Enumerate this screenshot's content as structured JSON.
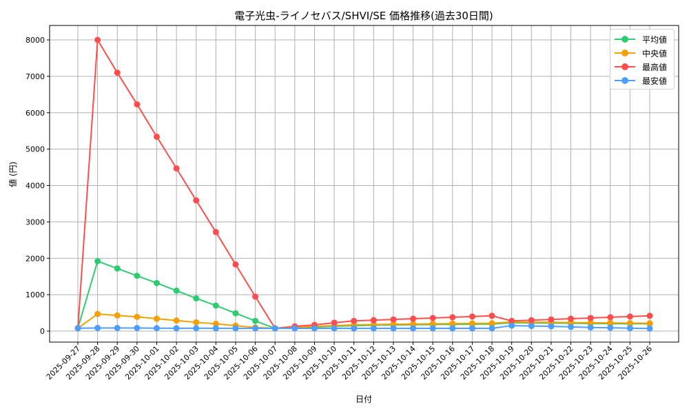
{
  "chart_data": {
    "type": "line",
    "title": "電子光虫-ライノセバス/SHVI/SE 価格推移(過去30日間)",
    "xlabel": "日付",
    "ylabel": "値 (円)",
    "ylim": [
      -300,
      8400
    ],
    "yticks": [
      0,
      1000,
      2000,
      3000,
      4000,
      5000,
      6000,
      7000,
      8000
    ],
    "grid": true,
    "legend_position": "upper right",
    "x": [
      "2025-09-27",
      "2025-09-28",
      "2025-09-29",
      "2025-09-30",
      "2025-10-01",
      "2025-10-02",
      "2025-10-03",
      "2025-10-04",
      "2025-10-05",
      "2025-10-06",
      "2025-10-07",
      "2025-10-08",
      "2025-10-09",
      "2025-10-10",
      "2025-10-11",
      "2025-10-12",
      "2025-10-13",
      "2025-10-14",
      "2025-10-15",
      "2025-10-16",
      "2025-10-17",
      "2025-10-18",
      "2025-10-19",
      "2025-10-20",
      "2025-10-21",
      "2025-10-22",
      "2025-10-23",
      "2025-10-24",
      "2025-10-25",
      "2025-10-26"
    ],
    "series": [
      {
        "name": "平均値",
        "color": "#2ecc71",
        "values": [
          80,
          1920,
          1720,
          1520,
          1320,
          1110,
          900,
          700,
          490,
          280,
          75,
          90,
          110,
          130,
          150,
          160,
          170,
          175,
          180,
          185,
          190,
          195,
          230,
          225,
          220,
          215,
          210,
          205,
          200,
          200
        ]
      },
      {
        "name": "中央値",
        "color": "#f5a000",
        "values": [
          80,
          470,
          430,
          390,
          340,
          290,
          240,
          200,
          150,
          100,
          75,
          100,
          130,
          150,
          170,
          180,
          190,
          195,
          200,
          205,
          210,
          215,
          250,
          245,
          240,
          235,
          230,
          225,
          220,
          215
        ]
      },
      {
        "name": "最高値",
        "color": "#ff4d4d",
        "values": [
          80,
          8000,
          7100,
          6230,
          5340,
          4470,
          3590,
          2720,
          1830,
          945,
          75,
          130,
          170,
          230,
          280,
          300,
          320,
          340,
          360,
          380,
          400,
          420,
          280,
          300,
          320,
          340,
          360,
          380,
          400,
          420
        ]
      },
      {
        "name": "最安値",
        "color": "#4d9eff",
        "values": [
          80,
          85,
          85,
          85,
          80,
          78,
          78,
          77,
          76,
          75,
          75,
          75,
          75,
          75,
          75,
          75,
          75,
          75,
          75,
          75,
          75,
          75,
          150,
          140,
          130,
          115,
          100,
          90,
          80,
          70
        ]
      }
    ]
  },
  "legend": {
    "items": [
      {
        "label": "平均値",
        "color": "#2ecc71"
      },
      {
        "label": "中央値",
        "color": "#f5a000"
      },
      {
        "label": "最高値",
        "color": "#ff4d4d"
      },
      {
        "label": "最安値",
        "color": "#4d9eff"
      }
    ]
  }
}
